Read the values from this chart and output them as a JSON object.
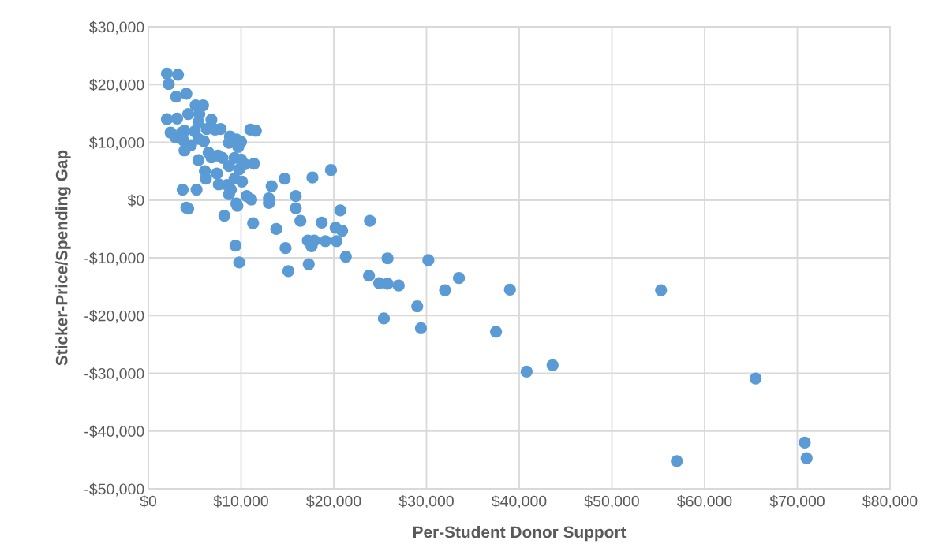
{
  "chart_data": {
    "type": "scatter",
    "xlabel": "Per-Student Donor Support",
    "ylabel": "Sticker-Price/Spending Gap",
    "x": [
      2000,
      3200,
      2200,
      3000,
      4100,
      2000,
      3100,
      2400,
      2900,
      3600,
      3900,
      4300,
      5100,
      5900,
      5500,
      5400,
      5000,
      4600,
      3900,
      3800,
      5400,
      6000,
      6300,
      6800,
      7200,
      7800,
      5400,
      6500,
      6800,
      7500,
      8000,
      6100,
      6200,
      7400,
      7600,
      8700,
      8800,
      9500,
      9700,
      10000,
      8700,
      9300,
      10000,
      9800,
      10400,
      10100,
      9300,
      8500,
      8900,
      8700,
      9500,
      9600,
      10600,
      11100,
      8200,
      11000,
      11600,
      11400,
      3700,
      5200,
      4100,
      4300,
      11300,
      9400,
      9800,
      13300,
      13000,
      13000,
      13800,
      14700,
      14800,
      15100,
      15900,
      15900,
      16400,
      17700,
      17200,
      17900,
      17600,
      17300,
      18700,
      19100,
      19700,
      20700,
      20200,
      20900,
      20300,
      21300,
      23900,
      23800,
      24900,
      25800,
      27000,
      25400,
      25800,
      29000,
      29400,
      30200,
      32000,
      33500,
      39000,
      37500,
      40800,
      43600,
      55300,
      57000,
      65500,
      70800,
      71000
    ],
    "values": [
      21900,
      21700,
      20100,
      17900,
      18400,
      14000,
      14100,
      11700,
      10900,
      11700,
      12000,
      14900,
      16400,
      16400,
      14900,
      13500,
      11900,
      9500,
      8600,
      10300,
      10600,
      10200,
      12300,
      13900,
      12200,
      12300,
      6900,
      8200,
      7400,
      7700,
      7300,
      5000,
      3700,
      4600,
      2700,
      9900,
      11000,
      10500,
      9200,
      10100,
      5900,
      7300,
      7000,
      5300,
      6200,
      3200,
      3700,
      2600,
      1800,
      1000,
      -600,
      -1000,
      700,
      100,
      -2700,
      12200,
      12000,
      6300,
      1800,
      1800,
      -1300,
      -1500,
      -4000,
      -7900,
      -10800,
      2400,
      300,
      -500,
      -5000,
      3700,
      -8300,
      -12300,
      700,
      -1400,
      -3600,
      3900,
      -7000,
      -7000,
      -8000,
      -11100,
      -3900,
      -7100,
      5200,
      -1800,
      -4800,
      -5300,
      -7100,
      -9800,
      -3600,
      -13100,
      -14400,
      -14500,
      -14800,
      -20500,
      -10100,
      -18400,
      -22200,
      -10400,
      -15600,
      -13500,
      -15500,
      -22800,
      -29700,
      -28600,
      -15600,
      -45200,
      -30900,
      -42000,
      -44700
    ],
    "color": "#5b9bd5",
    "marker": "circle",
    "grid": true,
    "xlim": [
      0,
      80000
    ],
    "ylim": [
      -50000,
      30000
    ],
    "xticks": [
      {
        "value": 0,
        "label": "$0"
      },
      {
        "value": 10000,
        "label": "$10,000"
      },
      {
        "value": 20000,
        "label": "$20,000"
      },
      {
        "value": 30000,
        "label": "$30,000"
      },
      {
        "value": 40000,
        "label": "$40,000"
      },
      {
        "value": 50000,
        "label": "$50,000"
      },
      {
        "value": 60000,
        "label": "$60,000"
      },
      {
        "value": 70000,
        "label": "$70,000"
      },
      {
        "value": 80000,
        "label": "$80,000"
      }
    ],
    "yticks": [
      {
        "value": -50000,
        "label": "-$50,000"
      },
      {
        "value": -40000,
        "label": "-$40,000"
      },
      {
        "value": -30000,
        "label": "-$30,000"
      },
      {
        "value": -20000,
        "label": "-$20,000"
      },
      {
        "value": -10000,
        "label": "-$10,000"
      },
      {
        "value": 0,
        "label": "$0"
      },
      {
        "value": 10000,
        "label": "$10,000"
      },
      {
        "value": 20000,
        "label": "$20,000"
      },
      {
        "value": 30000,
        "label": "$30,000"
      }
    ]
  }
}
